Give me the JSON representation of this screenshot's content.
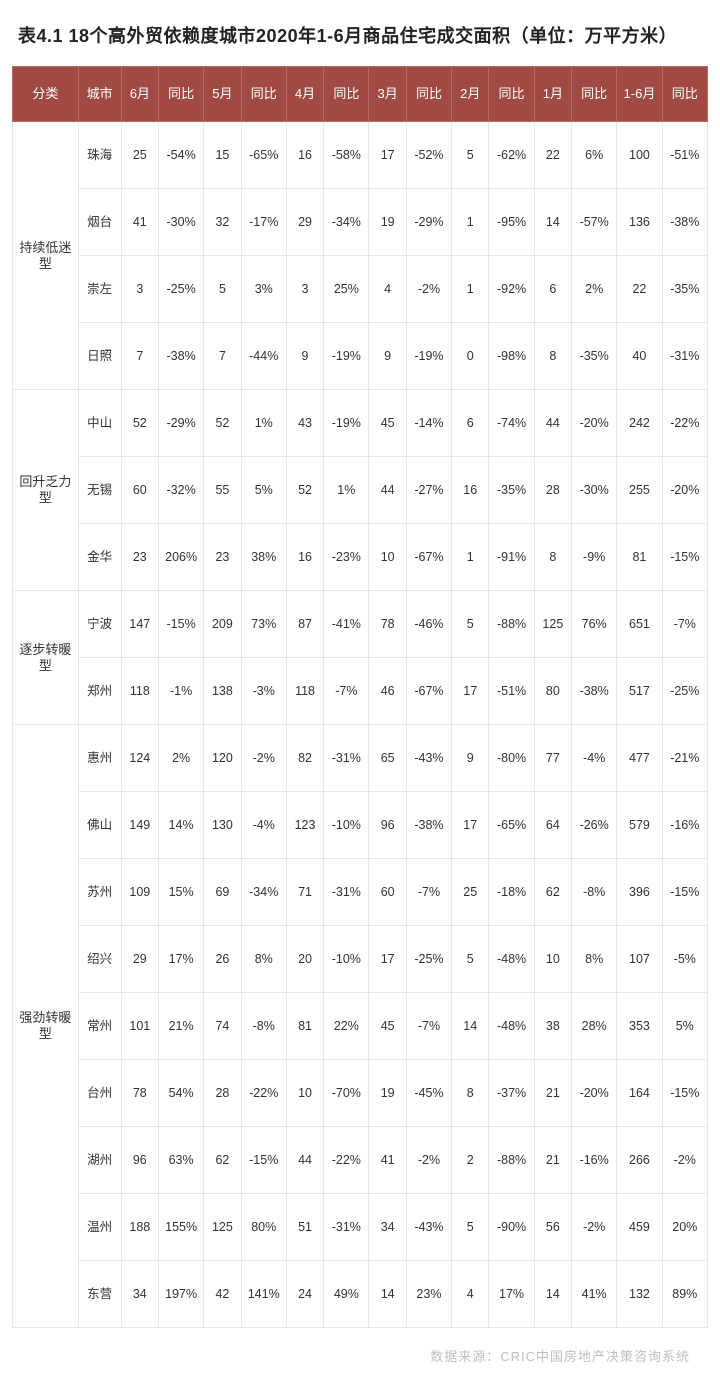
{
  "title": "表4.1 18个高外贸依赖度城市2020年1-6月商品住宅成交面积（单位：万平方米）",
  "source": "数据来源：CRIC中国房地产决策咨询系统",
  "table": {
    "type": "table",
    "header_bg": "#a14a44",
    "header_fg": "#ffffff",
    "border_color": "#e6e6e6",
    "columns": [
      "分类",
      "城市",
      "6月",
      "同比",
      "5月",
      "同比",
      "4月",
      "同比",
      "3月",
      "同比",
      "2月",
      "同比",
      "1月",
      "同比",
      "1-6月",
      "同比"
    ],
    "groups": [
      {
        "label": "持续低迷型",
        "rows": [
          {
            "city": "珠海",
            "cells": [
              "25",
              "-54%",
              "15",
              "-65%",
              "16",
              "-58%",
              "17",
              "-52%",
              "5",
              "-62%",
              "22",
              "6%",
              "100",
              "-51%"
            ]
          },
          {
            "city": "烟台",
            "cells": [
              "41",
              "-30%",
              "32",
              "-17%",
              "29",
              "-34%",
              "19",
              "-29%",
              "1",
              "-95%",
              "14",
              "-57%",
              "136",
              "-38%"
            ]
          },
          {
            "city": "崇左",
            "cells": [
              "3",
              "-25%",
              "5",
              "3%",
              "3",
              "25%",
              "4",
              "-2%",
              "1",
              "-92%",
              "6",
              "2%",
              "22",
              "-35%"
            ]
          },
          {
            "city": "日照",
            "cells": [
              "7",
              "-38%",
              "7",
              "-44%",
              "9",
              "-19%",
              "9",
              "-19%",
              "0",
              "-98%",
              "8",
              "-35%",
              "40",
              "-31%"
            ]
          }
        ]
      },
      {
        "label": "回升乏力型",
        "rows": [
          {
            "city": "中山",
            "cells": [
              "52",
              "-29%",
              "52",
              "1%",
              "43",
              "-19%",
              "45",
              "-14%",
              "6",
              "-74%",
              "44",
              "-20%",
              "242",
              "-22%"
            ]
          },
          {
            "city": "无锡",
            "cells": [
              "60",
              "-32%",
              "55",
              "5%",
              "52",
              "1%",
              "44",
              "-27%",
              "16",
              "-35%",
              "28",
              "-30%",
              "255",
              "-20%"
            ]
          },
          {
            "city": "金华",
            "cells": [
              "23",
              "206%",
              "23",
              "38%",
              "16",
              "-23%",
              "10",
              "-67%",
              "1",
              "-91%",
              "8",
              "-9%",
              "81",
              "-15%"
            ]
          }
        ]
      },
      {
        "label": "逐步转暖型",
        "rows": [
          {
            "city": "宁波",
            "cells": [
              "147",
              "-15%",
              "209",
              "73%",
              "87",
              "-41%",
              "78",
              "-46%",
              "5",
              "-88%",
              "125",
              "76%",
              "651",
              "-7%"
            ]
          },
          {
            "city": "郑州",
            "cells": [
              "118",
              "-1%",
              "138",
              "-3%",
              "118",
              "-7%",
              "46",
              "-67%",
              "17",
              "-51%",
              "80",
              "-38%",
              "517",
              "-25%"
            ]
          }
        ]
      },
      {
        "label": "强劲转暖型",
        "rows": [
          {
            "city": "惠州",
            "cells": [
              "124",
              "2%",
              "120",
              "-2%",
              "82",
              "-31%",
              "65",
              "-43%",
              "9",
              "-80%",
              "77",
              "-4%",
              "477",
              "-21%"
            ]
          },
          {
            "city": "佛山",
            "cells": [
              "149",
              "14%",
              "130",
              "-4%",
              "123",
              "-10%",
              "96",
              "-38%",
              "17",
              "-65%",
              "64",
              "-26%",
              "579",
              "-16%"
            ]
          },
          {
            "city": "苏州",
            "cells": [
              "109",
              "15%",
              "69",
              "-34%",
              "71",
              "-31%",
              "60",
              "-7%",
              "25",
              "-18%",
              "62",
              "-8%",
              "396",
              "-15%"
            ]
          },
          {
            "city": "绍兴",
            "cells": [
              "29",
              "17%",
              "26",
              "8%",
              "20",
              "-10%",
              "17",
              "-25%",
              "5",
              "-48%",
              "10",
              "8%",
              "107",
              "-5%"
            ]
          },
          {
            "city": "常州",
            "cells": [
              "101",
              "21%",
              "74",
              "-8%",
              "81",
              "22%",
              "45",
              "-7%",
              "14",
              "-48%",
              "38",
              "28%",
              "353",
              "5%"
            ]
          },
          {
            "city": "台州",
            "cells": [
              "78",
              "54%",
              "28",
              "-22%",
              "10",
              "-70%",
              "19",
              "-45%",
              "8",
              "-37%",
              "21",
              "-20%",
              "164",
              "-15%"
            ]
          },
          {
            "city": "湖州",
            "cells": [
              "96",
              "63%",
              "62",
              "-15%",
              "44",
              "-22%",
              "41",
              "-2%",
              "2",
              "-88%",
              "21",
              "-16%",
              "266",
              "-2%"
            ]
          },
          {
            "city": "温州",
            "cells": [
              "188",
              "155%",
              "125",
              "80%",
              "51",
              "-31%",
              "34",
              "-43%",
              "5",
              "-90%",
              "56",
              "-2%",
              "459",
              "20%"
            ]
          },
          {
            "city": "东营",
            "cells": [
              "34",
              "197%",
              "42",
              "141%",
              "24",
              "49%",
              "14",
              "23%",
              "4",
              "17%",
              "14",
              "41%",
              "132",
              "89%"
            ]
          }
        ]
      }
    ]
  }
}
